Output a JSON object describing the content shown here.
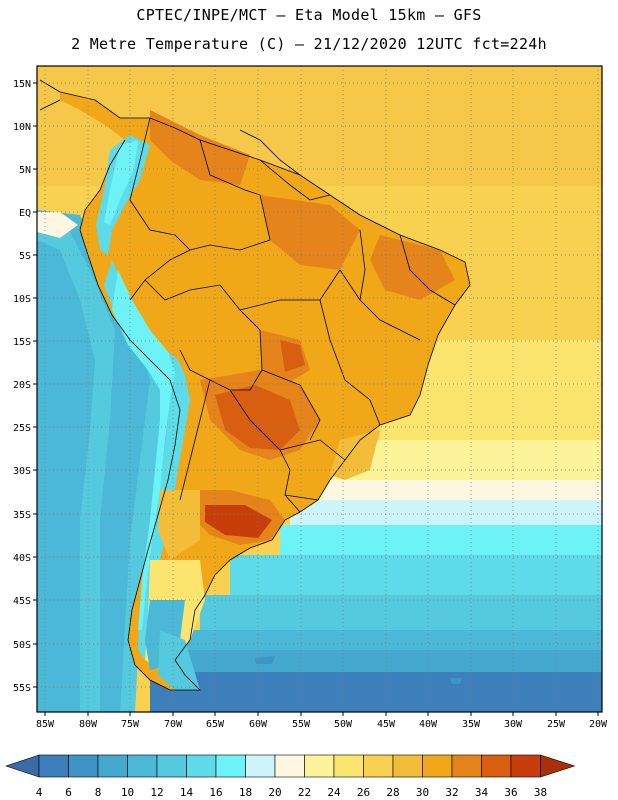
{
  "header": {
    "line1": "CPTEC/INPE/MCT –  Eta Model 15km – GFS",
    "line2": "2 Metre Temperature (C) – 21/12/2020 12UTC fct=224h"
  },
  "map": {
    "lat_labels": [
      "15N",
      "10N",
      "5N",
      "EQ",
      "5S",
      "10S",
      "15S",
      "20S",
      "25S",
      "30S",
      "35S",
      "40S",
      "45S",
      "50S",
      "55S"
    ],
    "lon_labels": [
      "85W",
      "80W",
      "75W",
      "70W",
      "65W",
      "60W",
      "55W",
      "50W",
      "45W",
      "40W",
      "35W",
      "30W",
      "25W",
      "20W"
    ]
  },
  "legend": {
    "values": [
      "4",
      "6",
      "8",
      "10",
      "12",
      "14",
      "16",
      "18",
      "20",
      "22",
      "24",
      "26",
      "28",
      "30",
      "32",
      "34",
      "36",
      "38"
    ],
    "colors": [
      "#3a6ba8",
      "#3c7fba",
      "#3f94c6",
      "#45a8cf",
      "#4ab8d6",
      "#55cadf",
      "#5ddbe9",
      "#6cf2f7",
      "#cdf4f8",
      "#fdf7e2",
      "#fdf49a",
      "#fce56e",
      "#f8d150",
      "#f2be3a",
      "#f0a818",
      "#e5841a",
      "#d95f10",
      "#c73e0b",
      "#a8300a"
    ]
  }
}
